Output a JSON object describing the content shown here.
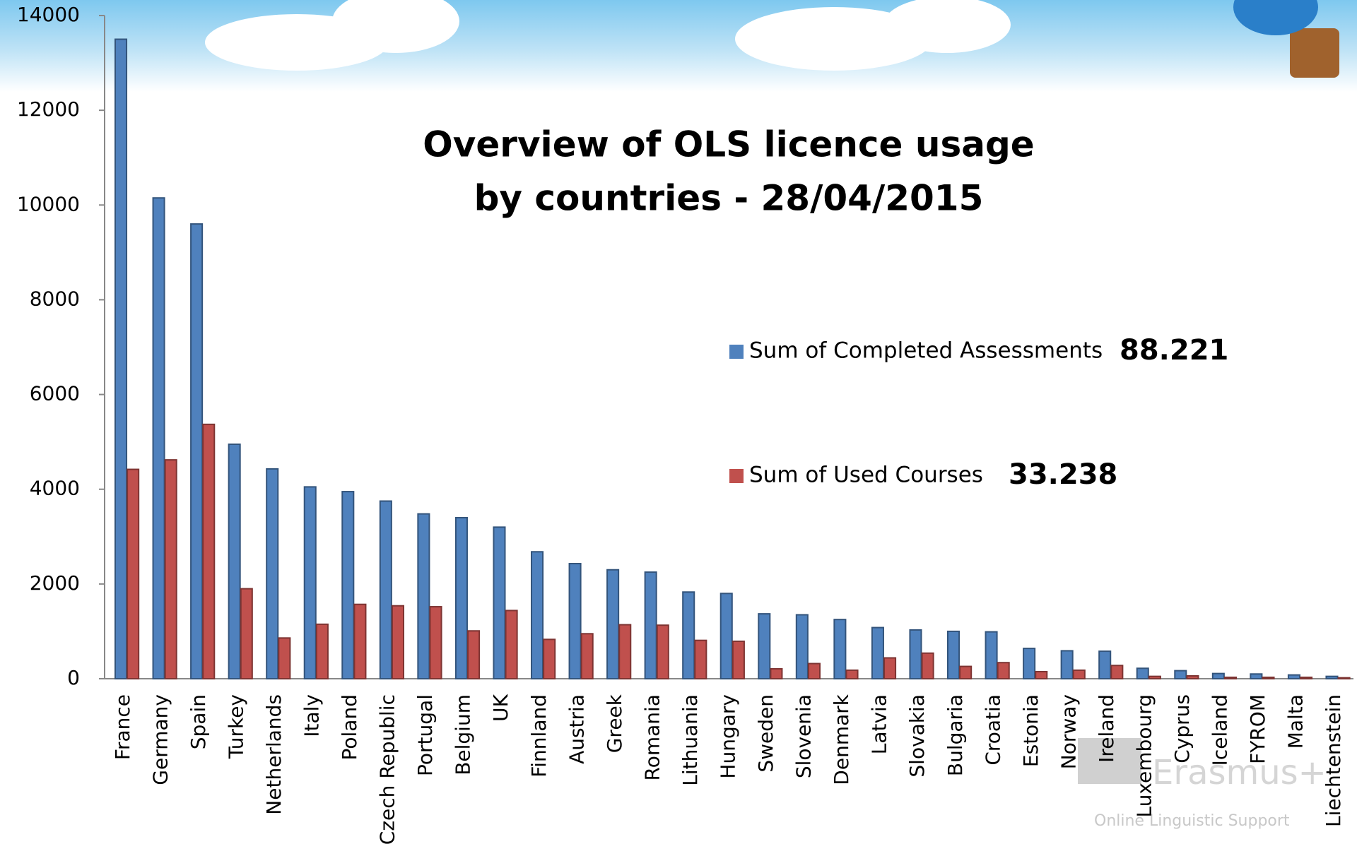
{
  "chart_data": {
    "type": "bar",
    "title": [
      "Overview of OLS licence usage",
      "by countries - 28/04/2015"
    ],
    "categories": [
      "France",
      "Germany",
      "Spain",
      "Turkey",
      "Netherlands",
      "Italy",
      "Poland",
      "Czech Republic",
      "Portugal",
      "Belgium",
      "UK",
      "Finnland",
      "Austria",
      "Greek",
      "Romania",
      "Lithuania",
      "Hungary",
      "Sweden",
      "Slovenia",
      "Denmark",
      "Latvia",
      "Slovakia",
      "Bulgaria",
      "Croatia",
      "Estonia",
      "Norway",
      "Ireland",
      "Luxembourg",
      "Cyprus",
      "Iceland",
      "FYROM",
      "Malta",
      "Liechtenstein"
    ],
    "series": [
      {
        "name": "Sum of Completed Assessments",
        "color": "#4f81bd",
        "values": [
          13500,
          10150,
          9600,
          4950,
          4430,
          4050,
          3950,
          3750,
          3480,
          3400,
          3200,
          2680,
          2430,
          2300,
          2250,
          1830,
          1800,
          1370,
          1350,
          1250,
          1080,
          1030,
          1000,
          990,
          640,
          590,
          580,
          220,
          170,
          110,
          100,
          80,
          50
        ]
      },
      {
        "name": "Sum of Used Courses",
        "color": "#c0504d",
        "values": [
          4420,
          4620,
          5370,
          1900,
          860,
          1150,
          1570,
          1540,
          1520,
          1010,
          1440,
          830,
          950,
          1140,
          1130,
          810,
          790,
          210,
          320,
          180,
          440,
          540,
          260,
          340,
          150,
          180,
          280,
          50,
          60,
          30,
          30,
          30,
          20
        ]
      }
    ],
    "annotations": [
      "88.221",
      "33.238"
    ],
    "watermark": [
      "Erasmus+",
      "Online Linguistic Support"
    ],
    "ylim": [
      0,
      14000
    ],
    "yticks": [
      0,
      2000,
      4000,
      6000,
      8000,
      10000,
      12000,
      14000
    ],
    "grid": false
  }
}
